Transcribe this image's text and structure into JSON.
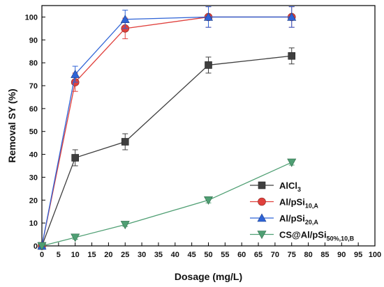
{
  "chart_data": {
    "type": "line",
    "xlabel": "Dosage (mg/L)",
    "ylabel": "Removal SY (%)",
    "xlim": [
      0,
      100
    ],
    "ylim": [
      0,
      105
    ],
    "xticks": [
      0,
      5,
      10,
      15,
      20,
      25,
      30,
      35,
      40,
      45,
      50,
      55,
      60,
      65,
      70,
      75,
      80,
      85,
      90,
      95,
      100
    ],
    "yticks": [
      0,
      10,
      20,
      30,
      40,
      50,
      60,
      70,
      80,
      90,
      100
    ],
    "x": [
      0,
      10,
      25,
      50,
      75
    ],
    "legend_position": "lower-right",
    "grid": false,
    "series": [
      {
        "name": "AlCl3",
        "name_main": "AlCl",
        "name_sub": "3",
        "marker": "square",
        "color": "#3f3f3f",
        "values": [
          0,
          38.5,
          45.5,
          79,
          83
        ],
        "errors": [
          0,
          3.5,
          3.5,
          3.5,
          3.5
        ]
      },
      {
        "name": "Al/pSi10,A",
        "name_main": "Al/pSi",
        "name_sub": "10,A",
        "marker": "circle",
        "color": "#e0403c",
        "values": [
          0,
          71.5,
          95,
          100,
          100
        ],
        "errors": [
          0,
          4,
          4.5,
          4.5,
          4.5
        ]
      },
      {
        "name": "Al/pSi20,A",
        "name_main": "Al/pSi",
        "name_sub": "20,A",
        "marker": "triangle-up",
        "color": "#2e63d6",
        "values": [
          0,
          75,
          99,
          100,
          100
        ],
        "errors": [
          0,
          3.5,
          4,
          4.5,
          4.5
        ]
      },
      {
        "name": "CS@Al/pSi50%,10,B",
        "name_main": "CS@Al/pSi",
        "name_sub": "50%,10,B",
        "marker": "triangle-down",
        "color": "#4f9f73",
        "values": [
          0,
          3.7,
          9.3,
          20,
          36.5
        ],
        "errors": [
          0,
          0.8,
          0.8,
          1.2,
          1.2
        ]
      }
    ]
  }
}
